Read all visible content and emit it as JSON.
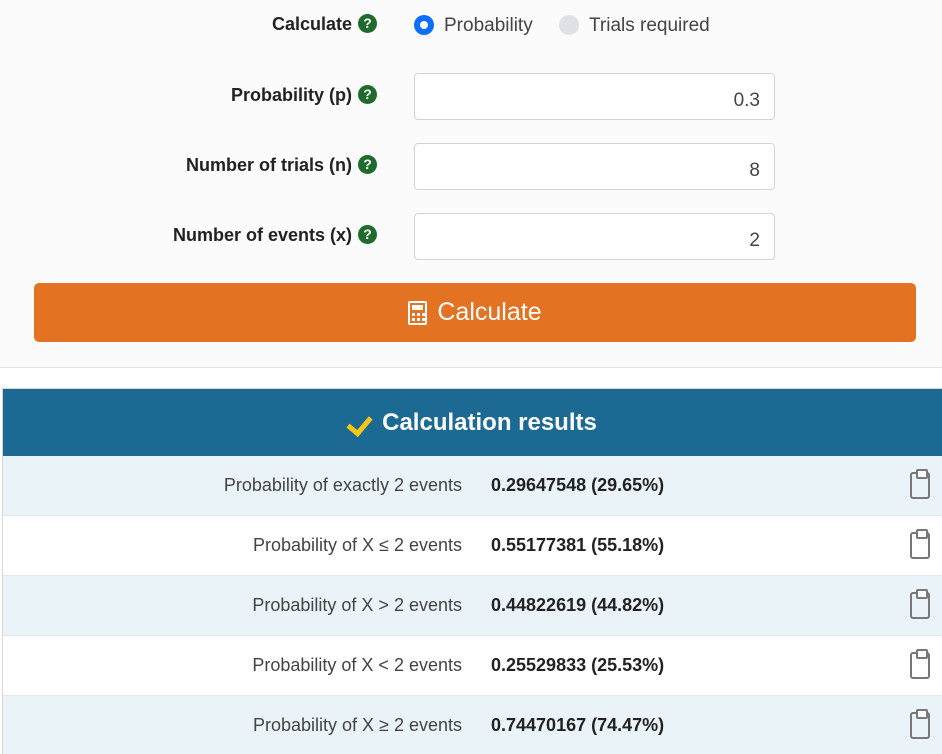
{
  "calculate": {
    "label": "Calculate",
    "options": [
      {
        "label": "Probability",
        "selected": true
      },
      {
        "label": "Trials required",
        "selected": false
      }
    ]
  },
  "fields": {
    "probability": {
      "label": "Probability (p)",
      "value": "0.3"
    },
    "trials": {
      "label": "Number of trials (n)",
      "value": "8"
    },
    "events": {
      "label": "Number of events (x)",
      "value": "2"
    }
  },
  "help_glyph": "?",
  "calc_button": {
    "label": "Calculate",
    "icon": "calculator-icon"
  },
  "results": {
    "title": "Calculation results",
    "rows": [
      {
        "label": "Probability of exactly 2 events",
        "value": "0.29647548 (29.65%)"
      },
      {
        "label": "Probability of X ≤ 2 events",
        "value": "0.55177381 (55.18%)"
      },
      {
        "label": "Probability of X > 2 events",
        "value": "0.44822619 (44.82%)"
      },
      {
        "label": "Probability of X < 2 events",
        "value": "0.25529833 (25.53%)"
      },
      {
        "label": "Probability of X ≥ 2 events",
        "value": "0.74470167 (74.47%)"
      }
    ]
  },
  "colors": {
    "accent": "#e37222",
    "header": "#1c6a94",
    "help": "#1e6b2d",
    "check": "#f5c518"
  }
}
